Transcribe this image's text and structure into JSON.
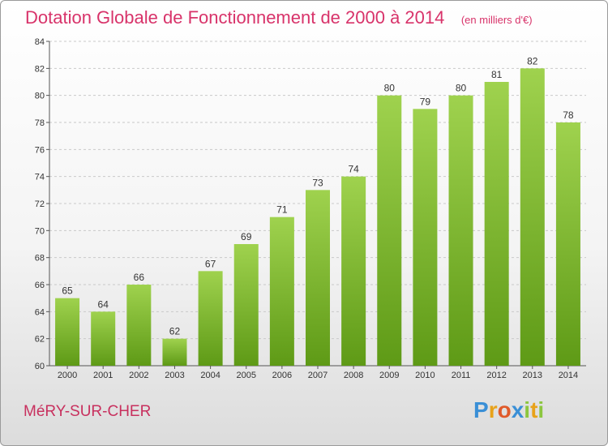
{
  "header": {
    "title": "Dotation Globale de Fonctionnement de 2000 à 2014",
    "unit": "(en milliers d'€)"
  },
  "footer": {
    "commune": "MéRY-SUR-CHER",
    "logo": {
      "letters": [
        "P",
        "r",
        "o",
        "x",
        "i",
        "t",
        "i"
      ],
      "colors": [
        "#3a8fd6",
        "#e8a21a",
        "#e05a2a",
        "#3a8fd6",
        "#8cc63f",
        "#e8a21a",
        "#8cc63f"
      ]
    }
  },
  "colors": {
    "bar_top": "#9fd24e",
    "bar_bottom": "#5e9a16",
    "title": "#d8336a"
  },
  "chart_data": {
    "type": "bar",
    "title": "Dotation Globale de Fonctionnement de 2000 à 2014",
    "xlabel": "",
    "ylabel": "",
    "categories": [
      "2000",
      "2001",
      "2002",
      "2003",
      "2004",
      "2005",
      "2006",
      "2007",
      "2008",
      "2009",
      "2010",
      "2011",
      "2012",
      "2013",
      "2014"
    ],
    "values": [
      65,
      64,
      66,
      62,
      67,
      69,
      71,
      73,
      74,
      80,
      79,
      80,
      81,
      82,
      78
    ],
    "ylim": [
      60,
      84
    ],
    "yticks": [
      60,
      62,
      64,
      66,
      68,
      70,
      72,
      74,
      76,
      78,
      80,
      82,
      84
    ],
    "grid": true,
    "legend": "none"
  }
}
